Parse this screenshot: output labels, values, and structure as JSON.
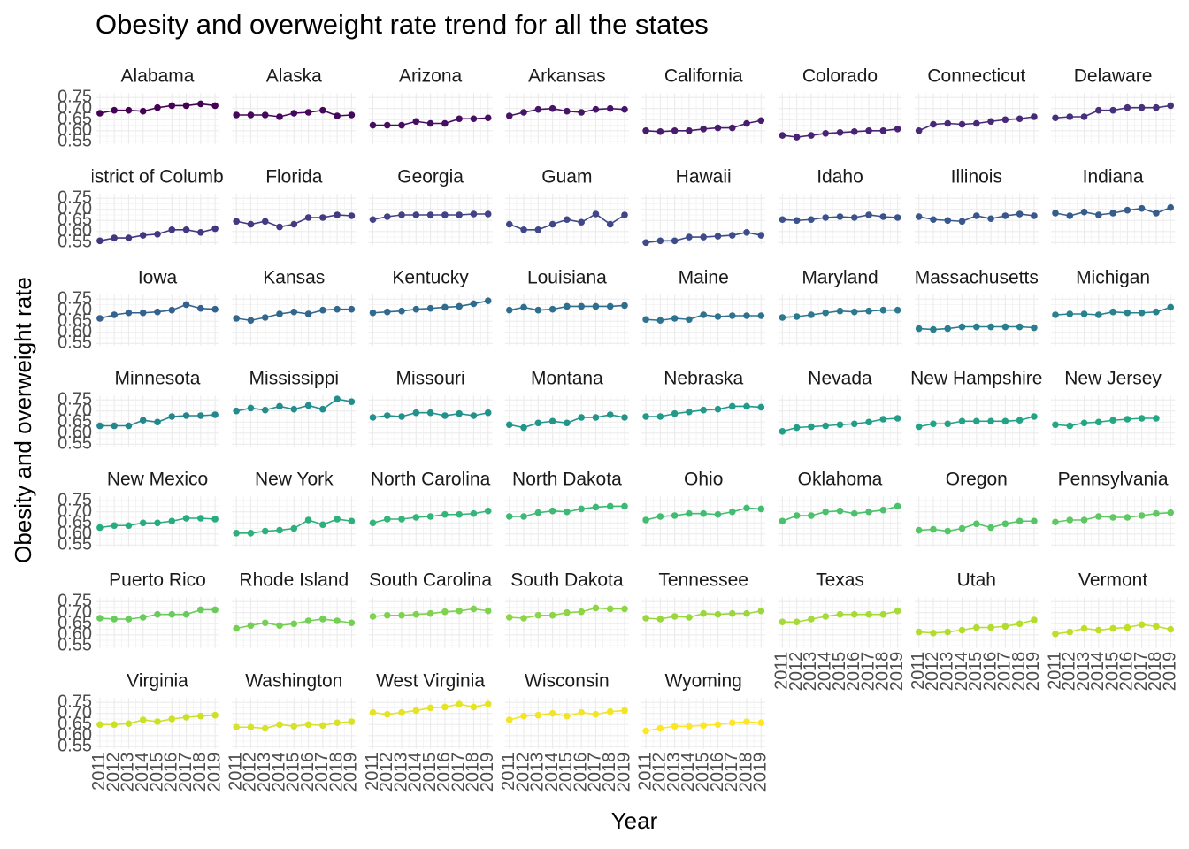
{
  "chart_data": {
    "type": "line",
    "title": "Obesity and overweight rate trend for all the states",
    "x_label": "Year",
    "y_label": "Obesity and overweight rate",
    "x": [
      2011,
      2012,
      2013,
      2014,
      2015,
      2016,
      2017,
      2018,
      2019
    ],
    "xlim": [
      2010.7,
      2019.3
    ],
    "xticks": [
      2011,
      2012,
      2013,
      2014,
      2015,
      2016,
      2017,
      2018,
      2019
    ],
    "ylim": [
      0.54,
      0.77
    ],
    "yticks": [
      {
        "value": 0.55,
        "label": "0.55"
      },
      {
        "value": 0.6,
        "label": "0.60"
      },
      {
        "value": 0.65,
        "label": "0.65"
      },
      {
        "value": 0.7,
        "label": "0.70"
      },
      {
        "value": 0.75,
        "label": "0.75"
      }
    ],
    "grid": true,
    "facet_columns": 8,
    "palette": [
      "#440154",
      "#482475",
      "#414487",
      "#355f8d",
      "#2a788e",
      "#21918c",
      "#22a884",
      "#44bf70",
      "#7ad151",
      "#bddf26",
      "#fde725"
    ],
    "series": [
      {
        "name": "Alabama",
        "values": [
          0.679,
          0.692,
          0.692,
          0.688,
          0.704,
          0.713,
          0.713,
          0.721,
          0.713
        ]
      },
      {
        "name": "Alaska",
        "values": [
          0.671,
          0.671,
          0.671,
          0.663,
          0.679,
          0.683,
          0.692,
          0.667,
          0.671
        ]
      },
      {
        "name": "Arizona",
        "values": [
          0.625,
          0.625,
          0.625,
          0.642,
          0.633,
          0.633,
          0.654,
          0.654,
          0.658
        ]
      },
      {
        "name": "Arkansas",
        "values": [
          0.667,
          0.683,
          0.696,
          0.7,
          0.688,
          0.683,
          0.696,
          0.7,
          0.696
        ]
      },
      {
        "name": "California",
        "values": [
          0.6,
          0.596,
          0.6,
          0.6,
          0.608,
          0.613,
          0.613,
          0.633,
          0.646
        ]
      },
      {
        "name": "Colorado",
        "values": [
          0.579,
          0.571,
          0.579,
          0.588,
          0.592,
          0.596,
          0.6,
          0.6,
          0.608
        ]
      },
      {
        "name": "Connecticut",
        "values": [
          0.6,
          0.629,
          0.633,
          0.629,
          0.633,
          0.642,
          0.65,
          0.654,
          0.663
        ]
      },
      {
        "name": "Delaware",
        "values": [
          0.658,
          0.663,
          0.663,
          0.692,
          0.692,
          0.704,
          0.704,
          0.704,
          0.713
        ]
      },
      {
        "name": "District of Columbia",
        "values": [
          0.558,
          0.571,
          0.571,
          0.583,
          0.588,
          0.608,
          0.608,
          0.596,
          0.613
        ]
      },
      {
        "name": "Florida",
        "values": [
          0.646,
          0.633,
          0.646,
          0.621,
          0.633,
          0.663,
          0.663,
          0.675,
          0.671
        ]
      },
      {
        "name": "Georgia",
        "values": [
          0.654,
          0.667,
          0.675,
          0.675,
          0.675,
          0.675,
          0.675,
          0.679,
          0.679
        ]
      },
      {
        "name": "Guam",
        "values": [
          0.633,
          0.608,
          0.608,
          0.633,
          0.654,
          0.642,
          0.679,
          0.633,
          0.675
        ]
      },
      {
        "name": "Hawaii",
        "values": [
          0.55,
          0.558,
          0.558,
          0.575,
          0.575,
          0.579,
          0.583,
          0.596,
          0.583
        ]
      },
      {
        "name": "Idaho",
        "values": [
          0.654,
          0.65,
          0.654,
          0.663,
          0.667,
          0.663,
          0.675,
          0.667,
          0.663
        ]
      },
      {
        "name": "Illinois",
        "values": [
          0.667,
          0.654,
          0.65,
          0.646,
          0.671,
          0.658,
          0.671,
          0.679,
          0.671
        ]
      },
      {
        "name": "Indiana",
        "values": [
          0.683,
          0.671,
          0.688,
          0.675,
          0.683,
          0.696,
          0.704,
          0.683,
          0.708
        ]
      },
      {
        "name": "Iowa",
        "values": [
          0.663,
          0.679,
          0.688,
          0.688,
          0.692,
          0.7,
          0.725,
          0.708,
          0.704
        ]
      },
      {
        "name": "Kansas",
        "values": [
          0.663,
          0.654,
          0.667,
          0.683,
          0.692,
          0.683,
          0.7,
          0.704,
          0.704
        ]
      },
      {
        "name": "Kentucky",
        "values": [
          0.688,
          0.692,
          0.696,
          0.704,
          0.708,
          0.713,
          0.717,
          0.729,
          0.742
        ]
      },
      {
        "name": "Louisiana",
        "values": [
          0.7,
          0.713,
          0.7,
          0.704,
          0.717,
          0.717,
          0.717,
          0.717,
          0.721
        ]
      },
      {
        "name": "Maine",
        "values": [
          0.658,
          0.654,
          0.663,
          0.658,
          0.679,
          0.671,
          0.675,
          0.675,
          0.675
        ]
      },
      {
        "name": "Maryland",
        "values": [
          0.667,
          0.671,
          0.679,
          0.688,
          0.696,
          0.692,
          0.696,
          0.7,
          0.7
        ]
      },
      {
        "name": "Massachusetts",
        "values": [
          0.617,
          0.613,
          0.617,
          0.625,
          0.625,
          0.625,
          0.625,
          0.625,
          0.621
        ]
      },
      {
        "name": "Michigan",
        "values": [
          0.679,
          0.683,
          0.683,
          0.679,
          0.692,
          0.688,
          0.688,
          0.692,
          0.713
        ]
      },
      {
        "name": "Minnesota",
        "values": [
          0.633,
          0.633,
          0.633,
          0.658,
          0.65,
          0.675,
          0.679,
          0.679,
          0.683
        ]
      },
      {
        "name": "Mississippi",
        "values": [
          0.7,
          0.713,
          0.704,
          0.721,
          0.708,
          0.725,
          0.708,
          0.754,
          0.742
        ]
      },
      {
        "name": "Missouri",
        "values": [
          0.671,
          0.679,
          0.675,
          0.692,
          0.692,
          0.679,
          0.688,
          0.679,
          0.692
        ]
      },
      {
        "name": "Montana",
        "values": [
          0.638,
          0.625,
          0.646,
          0.654,
          0.646,
          0.671,
          0.671,
          0.683,
          0.671
        ]
      },
      {
        "name": "Nebraska",
        "values": [
          0.675,
          0.675,
          0.688,
          0.696,
          0.704,
          0.708,
          0.721,
          0.721,
          0.717
        ]
      },
      {
        "name": "Nevada",
        "values": [
          0.608,
          0.625,
          0.629,
          0.633,
          0.638,
          0.642,
          0.65,
          0.663,
          0.667
        ]
      },
      {
        "name": "New Hampshire",
        "values": [
          0.629,
          0.642,
          0.642,
          0.654,
          0.654,
          0.654,
          0.654,
          0.658,
          0.675
        ]
      },
      {
        "name": "New Jersey",
        "values": [
          0.638,
          0.633,
          0.646,
          0.65,
          0.658,
          0.663,
          0.667,
          0.667,
          null
        ]
      },
      {
        "name": "New Mexico",
        "values": [
          0.629,
          0.638,
          0.638,
          0.65,
          0.65,
          0.658,
          0.671,
          0.671,
          0.667
        ]
      },
      {
        "name": "New York",
        "values": [
          0.604,
          0.604,
          0.613,
          0.617,
          0.625,
          0.663,
          0.642,
          0.667,
          0.658
        ]
      },
      {
        "name": "North Carolina",
        "values": [
          0.65,
          0.667,
          0.667,
          0.675,
          0.679,
          0.688,
          0.688,
          0.692,
          0.704
        ]
      },
      {
        "name": "North Dakota",
        "values": [
          0.679,
          0.679,
          0.696,
          0.704,
          0.7,
          0.713,
          0.721,
          0.725,
          0.725
        ]
      },
      {
        "name": "Ohio",
        "values": [
          0.663,
          0.679,
          0.683,
          0.692,
          0.692,
          0.688,
          0.7,
          0.717,
          0.713
        ]
      },
      {
        "name": "Oklahoma",
        "values": [
          0.658,
          0.683,
          0.683,
          0.7,
          0.704,
          0.692,
          0.7,
          0.708,
          0.725
        ]
      },
      {
        "name": "Oregon",
        "values": [
          0.617,
          0.621,
          0.613,
          0.625,
          0.646,
          0.629,
          0.646,
          0.658,
          0.658
        ]
      },
      {
        "name": "Pennsylvania",
        "values": [
          0.654,
          0.663,
          0.663,
          0.679,
          0.675,
          0.675,
          0.683,
          0.692,
          0.696
        ]
      },
      {
        "name": "Puerto Rico",
        "values": [
          0.675,
          0.671,
          0.671,
          0.679,
          0.692,
          0.692,
          0.692,
          0.713,
          0.713
        ]
      },
      {
        "name": "Rhode Island",
        "values": [
          0.629,
          0.642,
          0.654,
          0.642,
          0.65,
          0.663,
          0.671,
          0.663,
          0.654
        ]
      },
      {
        "name": "South Carolina",
        "values": [
          0.683,
          0.688,
          0.688,
          0.692,
          0.696,
          0.704,
          0.708,
          0.717,
          0.708
        ]
      },
      {
        "name": "South Dakota",
        "values": [
          0.679,
          0.675,
          0.688,
          0.688,
          0.7,
          0.704,
          0.721,
          0.717,
          0.717
        ]
      },
      {
        "name": "Tennessee",
        "values": [
          0.675,
          0.671,
          0.683,
          0.679,
          0.696,
          0.692,
          0.696,
          0.696,
          0.708
        ]
      },
      {
        "name": "Texas",
        "values": [
          0.658,
          0.658,
          0.671,
          0.683,
          0.692,
          0.692,
          0.692,
          0.692,
          0.708
        ]
      },
      {
        "name": "Utah",
        "values": [
          0.613,
          0.608,
          0.613,
          0.621,
          0.633,
          0.633,
          0.638,
          0.65,
          0.667
        ]
      },
      {
        "name": "Vermont",
        "values": [
          0.604,
          0.613,
          0.629,
          0.621,
          0.629,
          0.633,
          0.646,
          0.638,
          0.625
        ]
      },
      {
        "name": "Virginia",
        "values": [
          0.65,
          0.65,
          0.654,
          0.671,
          0.663,
          0.675,
          0.683,
          0.688,
          0.692
        ]
      },
      {
        "name": "Washington",
        "values": [
          0.638,
          0.638,
          0.633,
          0.65,
          0.642,
          0.65,
          0.646,
          0.658,
          0.663
        ]
      },
      {
        "name": "West Virginia",
        "values": [
          0.704,
          0.696,
          0.704,
          0.713,
          0.725,
          0.729,
          0.742,
          0.729,
          0.742
        ]
      },
      {
        "name": "Wisconsin",
        "values": [
          0.671,
          0.688,
          0.692,
          0.7,
          0.688,
          0.704,
          0.696,
          0.708,
          0.713
        ]
      },
      {
        "name": "Wyoming",
        "values": [
          0.621,
          0.633,
          0.642,
          0.642,
          0.646,
          0.65,
          0.658,
          0.663,
          0.658
        ]
      }
    ]
  }
}
